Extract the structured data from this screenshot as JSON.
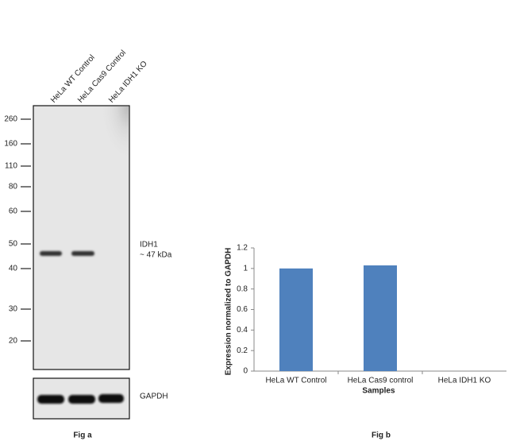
{
  "blot": {
    "lanes": [
      "HeLa WT Control",
      "HeLa Cas9 Control",
      "HeLa IDH1 KO"
    ],
    "markers": [
      "260",
      "160",
      "110",
      "80",
      "60",
      "50",
      "40",
      "30",
      "20"
    ],
    "target": "IDH1",
    "target_size": "~ 47 kDa",
    "loading_control": "GAPDH",
    "caption": "Fig a"
  },
  "chart_data": {
    "type": "bar",
    "categories": [
      "HeLa WT Control",
      "HeLa Cas9 control",
      "HeLa IDH1 KO"
    ],
    "values": [
      1.0,
      1.03,
      0
    ],
    "color": "#4f81bd",
    "ylim": [
      0,
      1.2
    ],
    "yticks": [
      0,
      0.2,
      0.4,
      0.6,
      0.8,
      1,
      1.2
    ],
    "ylabel": "Expression  normalized to GAPDH",
    "xlabel": "Samples",
    "caption": "Fig b"
  }
}
